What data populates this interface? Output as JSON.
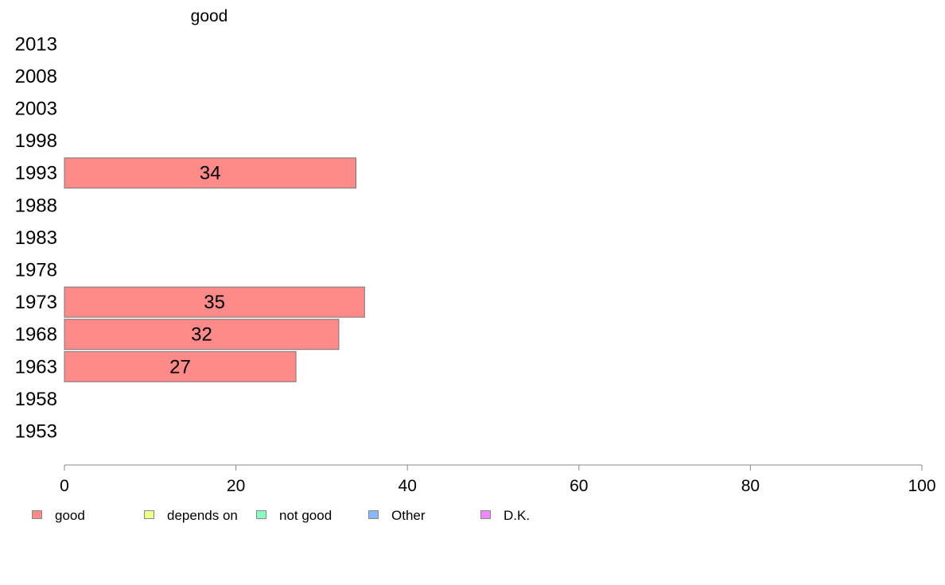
{
  "chart_data": {
    "type": "bar",
    "orientation": "horizontal",
    "column_header": "good",
    "categories": [
      "2013",
      "2008",
      "2003",
      "1998",
      "1993",
      "1988",
      "1983",
      "1978",
      "1973",
      "1968",
      "1963",
      "1958",
      "1953"
    ],
    "series": [
      {
        "name": "good",
        "color": "#ff8a8a",
        "values": [
          null,
          null,
          null,
          null,
          34,
          null,
          null,
          null,
          35,
          32,
          27,
          null,
          null
        ]
      }
    ],
    "xlim": [
      0,
      100
    ],
    "xticks": [
      "0",
      "20",
      "40",
      "60",
      "80",
      "100"
    ],
    "grid": false,
    "legend": {
      "placement": "bottom",
      "items": [
        {
          "label": "good",
          "color": "#ff8a8a"
        },
        {
          "label": "depends on",
          "color": "#eeff8a"
        },
        {
          "label": "not good",
          "color": "#8affc4"
        },
        {
          "label": "Other",
          "color": "#8ab8ff"
        },
        {
          "label": "D.K.",
          "color": "#ee8aff"
        }
      ]
    }
  }
}
